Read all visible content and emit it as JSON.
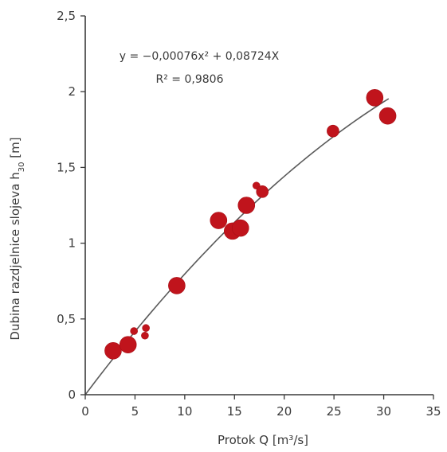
{
  "chart_data": {
    "type": "scatter",
    "title": "",
    "xlabel": "Protok Q [m³/s]",
    "ylabel": "Dubina razdjelnice slojeva h",
    "ylabel_sub": "30",
    "ylabel_unit": " [m]",
    "xlim": [
      0,
      35
    ],
    "ylim": [
      0,
      2.5
    ],
    "x_ticks": [
      0,
      5,
      10,
      15,
      20,
      25,
      30,
      35
    ],
    "y_ticks": [
      0,
      0.5,
      1,
      1.5,
      2,
      2.5
    ],
    "x_tick_labels": [
      "0",
      "5",
      "10",
      "15",
      "20",
      "25",
      "30",
      "35"
    ],
    "y_tick_labels": [
      "0",
      "0,5",
      "1",
      "1,5",
      "2",
      "2,5"
    ],
    "grid": false,
    "legend": "none",
    "point_color": "#c0141c",
    "trendline": {
      "type": "polynomial",
      "a": -0.00076,
      "b": 0.08724,
      "c": 0,
      "x_range": [
        0,
        30.5
      ],
      "color": "#5a5a5a"
    },
    "equation_text": "y = −0,00076x² + 0,08724X",
    "r2_text": "R² = 0,9806",
    "points": [
      {
        "x": 2.8,
        "y": 0.29,
        "size": "large"
      },
      {
        "x": 4.3,
        "y": 0.33,
        "size": "large"
      },
      {
        "x": 4.9,
        "y": 0.42,
        "size": "small"
      },
      {
        "x": 6.0,
        "y": 0.39,
        "size": "small"
      },
      {
        "x": 6.1,
        "y": 0.44,
        "size": "small"
      },
      {
        "x": 9.2,
        "y": 0.72,
        "size": "large"
      },
      {
        "x": 13.4,
        "y": 1.15,
        "size": "large"
      },
      {
        "x": 14.8,
        "y": 1.08,
        "size": "large"
      },
      {
        "x": 15.6,
        "y": 1.1,
        "size": "large"
      },
      {
        "x": 16.2,
        "y": 1.25,
        "size": "large"
      },
      {
        "x": 17.2,
        "y": 1.38,
        "size": "small"
      },
      {
        "x": 17.8,
        "y": 1.34,
        "size": "medium"
      },
      {
        "x": 24.9,
        "y": 1.74,
        "size": "medium"
      },
      {
        "x": 29.1,
        "y": 1.96,
        "size": "large"
      },
      {
        "x": 30.4,
        "y": 1.84,
        "size": "large"
      }
    ]
  }
}
